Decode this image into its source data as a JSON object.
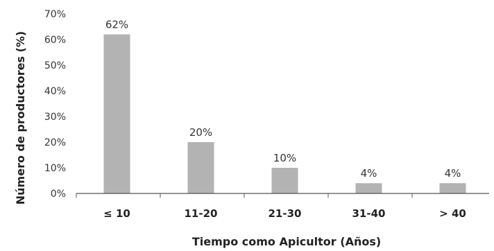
{
  "chart_data": {
    "type": "bar",
    "categories": [
      "≤ 10",
      "11-20",
      "21-30",
      "31-40",
      "> 40"
    ],
    "values": [
      62,
      20,
      10,
      4,
      4
    ],
    "data_labels": [
      "62%",
      "20%",
      "10%",
      "4%",
      "4%"
    ],
    "title": "",
    "xlabel": "Tiempo como Apicultor (Años)",
    "ylabel": "Número de productores (%)",
    "ylim": [
      0,
      70
    ],
    "yticks": [
      "0%",
      "10%",
      "20%",
      "30%",
      "40%",
      "50%",
      "60%",
      "70%"
    ],
    "grid": false,
    "legend": "none",
    "bar_color": "#b3b3b3",
    "axis_color": "#555555"
  }
}
